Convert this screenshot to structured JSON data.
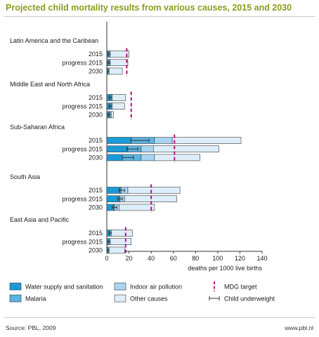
{
  "title": "Projected child mortality results from various causes, 2015 and 2030",
  "source": "Source: PBL, 2009",
  "site": "www.pbl.nl",
  "chart_data": {
    "type": "bar",
    "orientation": "horizontal",
    "stacked": true,
    "xlabel": "deaths per 1000 live births",
    "xlim": [
      0,
      140
    ],
    "xticks": [
      0,
      20,
      40,
      60,
      80,
      100,
      120,
      140
    ],
    "legend_position": "bottom",
    "colors": {
      "water": "#1a9bd7",
      "malaria": "#5ab3e2",
      "indoor": "#a9d4f0",
      "other": "#ddeefa",
      "mdg": "#b5137f",
      "whisker": "#333333"
    },
    "legend": [
      {
        "key": "water",
        "label": "Water supply and sanitation",
        "kind": "box"
      },
      {
        "key": "malaria",
        "label": "Malaria",
        "kind": "box"
      },
      {
        "key": "indoor",
        "label": "Indoor air pollution",
        "kind": "box"
      },
      {
        "key": "other",
        "label": "Other causes",
        "kind": "box"
      },
      {
        "key": "mdg",
        "label": "MDG target",
        "kind": "dash"
      },
      {
        "key": "whisker",
        "label": "Child underweight",
        "kind": "whisker"
      }
    ],
    "regions": [
      {
        "name": "Latin America and the Caribean",
        "mdg_target": 18,
        "rows": [
          {
            "label": "2015",
            "water": 2,
            "malaria": 0,
            "indoor": 1,
            "other": 17,
            "underweight": [
              1,
              3
            ]
          },
          {
            "label": "progress 2015",
            "water": 2,
            "malaria": 0,
            "indoor": 1,
            "other": 16,
            "underweight": [
              1,
              3
            ]
          },
          {
            "label": "2030",
            "water": 1,
            "malaria": 0,
            "indoor": 1,
            "other": 12,
            "underweight": [
              1,
              2
            ]
          }
        ]
      },
      {
        "name": "Middle East and North Africa",
        "mdg_target": 22,
        "rows": [
          {
            "label": "2015",
            "water": 3,
            "malaria": 1,
            "indoor": 1,
            "other": 12,
            "underweight": [
              2,
              4
            ]
          },
          {
            "label": "progress 2015",
            "water": 3,
            "malaria": 1,
            "indoor": 1,
            "other": 11,
            "underweight": [
              2,
              4
            ]
          },
          {
            "label": "2030",
            "water": 2,
            "malaria": 1,
            "indoor": 1,
            "other": 2,
            "underweight": [
              1,
              3
            ]
          }
        ]
      },
      {
        "name": "Sub-Saharan Africa",
        "mdg_target": 61,
        "rows": [
          {
            "label": "2015",
            "water": 22,
            "malaria": 21,
            "indoor": 16,
            "other": 62,
            "underweight": [
              22,
              38
            ]
          },
          {
            "label": "progress 2015",
            "water": 19,
            "malaria": 12,
            "indoor": 11,
            "other": 59,
            "underweight": [
              18,
              28
            ]
          },
          {
            "label": "2030",
            "water": 14,
            "malaria": 17,
            "indoor": 12,
            "other": 41,
            "underweight": [
              14,
              24
            ]
          }
        ]
      },
      {
        "name": "South Asia",
        "mdg_target": 40,
        "rows": [
          {
            "label": "2015",
            "water": 12,
            "malaria": 1,
            "indoor": 6,
            "other": 47,
            "underweight": [
              11,
              16
            ]
          },
          {
            "label": "progress 2015",
            "water": 11,
            "malaria": 1,
            "indoor": 4,
            "other": 47,
            "underweight": [
              10,
              14
            ]
          },
          {
            "label": "2030",
            "water": 6,
            "malaria": 1,
            "indoor": 4,
            "other": 32,
            "underweight": [
              5,
              9
            ]
          }
        ]
      },
      {
        "name": "East Asia and Pacific",
        "mdg_target": 17,
        "rows": [
          {
            "label": "2015",
            "water": 3,
            "malaria": 0,
            "indoor": 1,
            "other": 19,
            "underweight": [
              2,
              4
            ]
          },
          {
            "label": "progress 2015",
            "water": 2,
            "malaria": 0,
            "indoor": 1,
            "other": 19,
            "underweight": [
              1,
              3
            ]
          },
          {
            "label": "2030",
            "water": 1,
            "malaria": 0,
            "indoor": 1,
            "other": 14,
            "underweight": [
              1,
              2
            ]
          }
        ]
      }
    ]
  }
}
